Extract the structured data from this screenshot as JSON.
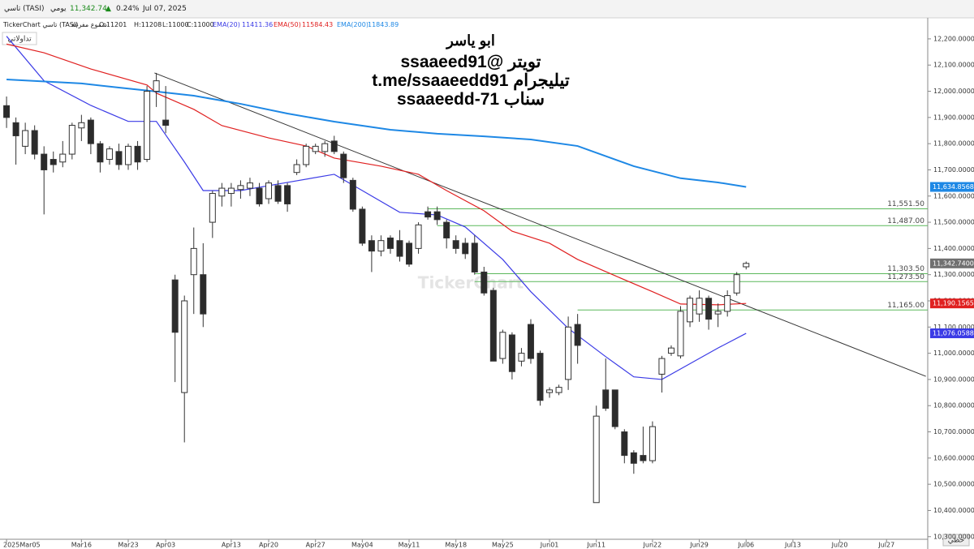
{
  "header": {
    "symbol": "تاسي (TASI)",
    "period": "يومي",
    "price": "11,342.74",
    "change": "0.24%",
    "date": "Jul 07, 2025",
    "source": "TickerChart تاسي (TASI)",
    "style": "شموع مفرغة",
    "open": "O:11201",
    "high": "H:11208",
    "low": "L:11000",
    "close": "C:11000",
    "ema20_name": "EMA(20)",
    "ema20_value": "11411.36",
    "ema50_name": "EMA(50)",
    "ema50_value": "11584.43",
    "ema200_name": "EMA(200)",
    "ema200_value": "11843.89",
    "tab": "تداولاتي",
    "footer": "خطي"
  },
  "annotation": {
    "lines": [
      "ابو ياسر",
      "تويتر  @ssaaeed91",
      "تيليجرام t.me/ssaaeedd91",
      "سناب  ssaaeedd-71"
    ],
    "watermark": "TickerChart"
  },
  "chart_data": {
    "type": "candlestick",
    "x": [
      0,
      1,
      2,
      3,
      4,
      5,
      6,
      7,
      8,
      9,
      10,
      11,
      12,
      13,
      14,
      15,
      16,
      17,
      18,
      19,
      20,
      21,
      22,
      23,
      24,
      25,
      26,
      27,
      28,
      29,
      30,
      31,
      32,
      33,
      34,
      35,
      36,
      37,
      38,
      39,
      40,
      41,
      42,
      43,
      44,
      45,
      46,
      47,
      48,
      49,
      50,
      51,
      52,
      53,
      54,
      55,
      56,
      57,
      58,
      59,
      60,
      61,
      63,
      64,
      65,
      66,
      67,
      68,
      69,
      70,
      71,
      72,
      73,
      74,
      75,
      76,
      77,
      78,
      79
    ],
    "open": [
      11945,
      11880,
      11790,
      11850,
      11760,
      11740,
      11730,
      11760,
      11860,
      11890,
      11800,
      11740,
      11770,
      11720,
      11790,
      11740,
      12000,
      11890,
      11280,
      10850,
      11300,
      11300,
      11500,
      11600,
      11610,
      11625,
      11630,
      11630,
      11590,
      11640,
      11640,
      11690,
      11720,
      11770,
      11770,
      11810,
      11760,
      11660,
      11550,
      11430,
      11390,
      11440,
      11430,
      11420,
      11400,
      11540,
      11540,
      11500,
      11430,
      11420,
      11420,
      11310,
      11240,
      10980,
      11070,
      10970,
      11110,
      11000,
      10850,
      10850,
      10900,
      11110,
      10430,
      10860,
      10860,
      10700,
      10620,
      10610,
      10590,
      10920,
      11000,
      10990,
      11120,
      11150,
      11210,
      11150,
      11160,
      11230,
      11330
    ],
    "high": [
      11980,
      11900,
      11880,
      11870,
      11790,
      11770,
      11810,
      11880,
      11910,
      11900,
      11810,
      11790,
      11800,
      11800,
      11810,
      12020,
      12070,
      12020,
      11300,
      11220,
      11480,
      11420,
      11620,
      11650,
      11650,
      11660,
      11670,
      11650,
      11660,
      11660,
      11650,
      11740,
      11800,
      11800,
      11810,
      11830,
      11770,
      11670,
      11560,
      11450,
      11450,
      11450,
      11470,
      11430,
      11500,
      11560,
      11560,
      11510,
      11450,
      11440,
      11450,
      11330,
      11250,
      11090,
      11080,
      11020,
      11130,
      11010,
      10870,
      10880,
      11140,
      11150,
      10800,
      10980,
      10860,
      10710,
      10630,
      10720,
      10740,
      10990,
      11030,
      11180,
      11220,
      11240,
      11220,
      11190,
      11240,
      11310,
      11350
    ],
    "low": [
      11860,
      11720,
      11760,
      11740,
      11530,
      11690,
      11710,
      11740,
      11810,
      11760,
      11690,
      11720,
      11700,
      11700,
      11700,
      11730,
      11940,
      11840,
      10890,
      10660,
      11150,
      11100,
      11440,
      11560,
      11560,
      11590,
      11600,
      11560,
      11570,
      11570,
      11540,
      11680,
      11710,
      11760,
      11750,
      11760,
      11650,
      11540,
      11410,
      11310,
      11370,
      11380,
      11350,
      11330,
      11380,
      11510,
      11490,
      11400,
      11380,
      11360,
      11300,
      11220,
      10970,
      10960,
      10900,
      10950,
      10960,
      10800,
      10830,
      10840,
      10860,
      10960,
      10430,
      10780,
      10710,
      10580,
      10540,
      10580,
      10580,
      10850,
      10990,
      10980,
      11100,
      11120,
      11090,
      11100,
      11140,
      11220,
      11320
    ],
    "close": [
      11900,
      11830,
      11850,
      11760,
      11700,
      11720,
      11760,
      11870,
      11880,
      11800,
      11730,
      11780,
      11720,
      11790,
      11730,
      12000,
      12040,
      11870,
      11080,
      11200,
      11400,
      11150,
      11610,
      11630,
      11630,
      11640,
      11650,
      11570,
      11650,
      11580,
      11570,
      11720,
      11790,
      11790,
      11800,
      11770,
      11670,
      11550,
      11420,
      11390,
      11430,
      11400,
      11370,
      11340,
      11490,
      11520,
      11510,
      11440,
      11400,
      11380,
      11310,
      11230,
      10970,
      11080,
      10930,
      11000,
      10980,
      10820,
      10860,
      10870,
      11100,
      11030,
      10760,
      10790,
      10720,
      10610,
      10580,
      10590,
      10720,
      10980,
      11020,
      11160,
      11210,
      11210,
      11130,
      11160,
      11220,
      11300,
      11343
    ],
    "up_color": "#ffffff",
    "down_color": "#2b2b2b",
    "edge_color": "#333333",
    "last_price_label": "11,342.7400",
    "series": [
      {
        "name": "EMA(20)",
        "color": "#3b3be6",
        "x": [
          0,
          4,
          9,
          13,
          16,
          19,
          21,
          25,
          30,
          35,
          38,
          42,
          46,
          49,
          53,
          56,
          60,
          64,
          67,
          70,
          73,
          76,
          79
        ],
        "values": [
          12210,
          12040,
          11946,
          11885,
          11885,
          11730,
          11621,
          11621,
          11652,
          11683,
          11621,
          11538,
          11528,
          11482,
          11358,
          11235,
          11095,
          10987,
          10910,
          10900,
          10960,
          11020,
          11076.0588
        ],
        "last_label": "11,076.0588"
      },
      {
        "name": "EMA(50)",
        "color": "#e02020",
        "x": [
          0,
          4,
          9,
          15,
          16,
          20,
          23,
          28,
          32,
          35,
          40,
          44,
          47,
          51,
          54,
          58,
          61,
          65,
          69,
          72,
          76,
          79
        ],
        "values": [
          12180,
          12147,
          12085,
          12024,
          11993,
          11931,
          11869,
          11822,
          11791,
          11745,
          11714,
          11683,
          11621,
          11544,
          11466,
          11420,
          11358,
          11296,
          11235,
          11188,
          11185,
          11190.1565
        ],
        "last_label": "11,190.1565"
      },
      {
        "name": "EMA(200)",
        "color": "#1e88e5",
        "x": [
          0,
          8,
          12,
          16,
          20,
          25,
          30,
          35,
          41,
          46,
          51,
          56,
          61,
          67,
          72,
          76,
          79
        ],
        "values": [
          12045,
          12030,
          12014,
          11999,
          11983,
          11952,
          11915,
          11884,
          11853,
          11838,
          11828,
          11816,
          11791,
          11714,
          11668,
          11652,
          11634.8568
        ],
        "last_label": "11,634.8568"
      }
    ],
    "trendline": {
      "x": [
        15.8,
        98.2
      ],
      "y": [
        12070,
        10912
      ],
      "color": "#333333"
    },
    "levels": [
      {
        "value": 11551.5,
        "label": "11,551.50",
        "start": 45
      },
      {
        "value": 11487,
        "label": "11,487.00",
        "start": 46
      },
      {
        "value": 11303.5,
        "label": "11,303.50",
        "start": 50
      },
      {
        "value": 11273.5,
        "label": "11,273.50",
        "start": 50
      },
      {
        "value": 11165,
        "label": "11,165.00",
        "start": 61
      }
    ],
    "level_color": "#5cb85c",
    "xlim": [
      -0.7,
      98.4
    ],
    "ylim": [
      10290,
      12240
    ],
    "grid": false,
    "xticks": [
      {
        "value": 0,
        "label": "2025Mar05"
      },
      {
        "value": 8,
        "label": "Mar16"
      },
      {
        "value": 13,
        "label": "Mar23"
      },
      {
        "value": 17,
        "label": "Apr03"
      },
      {
        "value": 24,
        "label": "Apr13"
      },
      {
        "value": 28,
        "label": "Apr20"
      },
      {
        "value": 33,
        "label": "Apr27"
      },
      {
        "value": 38,
        "label": "May04"
      },
      {
        "value": 43,
        "label": "May11"
      },
      {
        "value": 48,
        "label": "May18"
      },
      {
        "value": 53,
        "label": "May25"
      },
      {
        "value": 58,
        "label": "Jun01"
      },
      {
        "value": 63,
        "label": "Jun11"
      },
      {
        "value": 69,
        "label": "Jun22"
      },
      {
        "value": 74,
        "label": "Jun29"
      },
      {
        "value": 79,
        "label": "Jul06"
      },
      {
        "value": 84,
        "label": "Jul13"
      },
      {
        "value": 89,
        "label": "Jul20"
      },
      {
        "value": 94,
        "label": "Jul27"
      }
    ],
    "yticks": [
      {
        "value": 10300,
        "label": "10,300.0000"
      },
      {
        "value": 10400,
        "label": "10,400.0000"
      },
      {
        "value": 10500,
        "label": "10,500.0000"
      },
      {
        "value": 10600,
        "label": "10,600.0000"
      },
      {
        "value": 10700,
        "label": "10,700.0000"
      },
      {
        "value": 10800,
        "label": "10,800.0000"
      },
      {
        "value": 10900,
        "label": "10,900.0000"
      },
      {
        "value": 11000,
        "label": "11,000.0000"
      },
      {
        "value": 11100,
        "label": "11,100.0000"
      },
      {
        "value": 11200,
        "label": "11,200.0000"
      },
      {
        "value": 11300,
        "label": "11,300.0000"
      },
      {
        "value": 11400,
        "label": "11,400.0000"
      },
      {
        "value": 11500,
        "label": "11,500.0000"
      },
      {
        "value": 11600,
        "label": "11,600.0000"
      },
      {
        "value": 11700,
        "label": "11,700.0000"
      },
      {
        "value": 11800,
        "label": "11,800.0000"
      },
      {
        "value": 11900,
        "label": "11,900.0000"
      },
      {
        "value": 12000,
        "label": "12,000.0000"
      },
      {
        "value": 12100,
        "label": "12,100.0000"
      },
      {
        "value": 12200,
        "label": "12,200.0000"
      }
    ]
  }
}
